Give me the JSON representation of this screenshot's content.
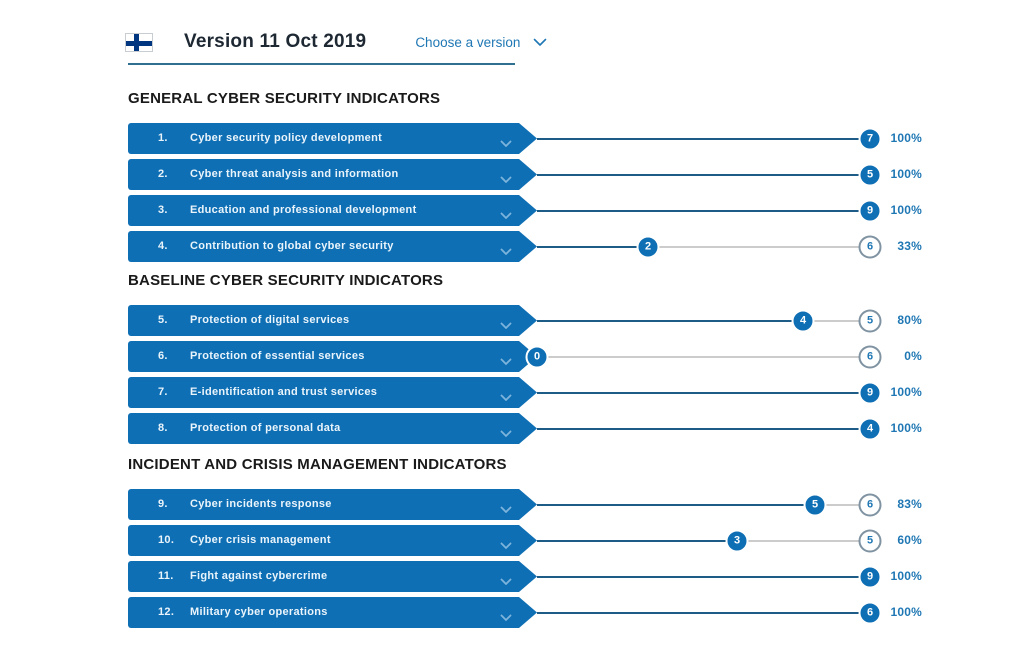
{
  "header": {
    "flag": "finland-flag",
    "title": "Version 11 Oct 2019",
    "version_selector": "Choose a version"
  },
  "sections": [
    {
      "title": "GENERAL CYBER SECURITY INDICATORS",
      "indicators": [
        {
          "num": "1.",
          "label": "Cyber security policy development",
          "score": 7,
          "max": 7,
          "percent": "100%"
        },
        {
          "num": "2.",
          "label": "Cyber threat analysis and information",
          "score": 5,
          "max": 5,
          "percent": "100%"
        },
        {
          "num": "3.",
          "label": "Education and professional development",
          "score": 9,
          "max": 9,
          "percent": "100%"
        },
        {
          "num": "4.",
          "label": "Contribution to global cyber security",
          "score": 2,
          "max": 6,
          "percent": "33%"
        }
      ]
    },
    {
      "title": "BASELINE CYBER SECURITY INDICATORS",
      "indicators": [
        {
          "num": "5.",
          "label": "Protection of digital services",
          "score": 4,
          "max": 5,
          "percent": "80%"
        },
        {
          "num": "6.",
          "label": "Protection of essential services",
          "score": 0,
          "max": 6,
          "percent": "0%"
        },
        {
          "num": "7.",
          "label": "E-identification and trust services",
          "score": 9,
          "max": 9,
          "percent": "100%"
        },
        {
          "num": "8.",
          "label": "Protection of personal data",
          "score": 4,
          "max": 4,
          "percent": "100%"
        }
      ]
    },
    {
      "title": "INCIDENT AND CRISIS MANAGEMENT INDICATORS",
      "indicators": [
        {
          "num": "9.",
          "label": "Cyber incidents response",
          "score": 5,
          "max": 6,
          "percent": "83%"
        },
        {
          "num": "10.",
          "label": "Cyber crisis management",
          "score": 3,
          "max": 5,
          "percent": "60%"
        },
        {
          "num": "11.",
          "label": "Fight against cybercrime",
          "score": 9,
          "max": 9,
          "percent": "100%"
        },
        {
          "num": "12.",
          "label": "Military cyber operations",
          "score": 6,
          "max": 6,
          "percent": "100%"
        }
      ]
    }
  ],
  "colors": {
    "bar_blue": "#0f6fb4",
    "accent_blue": "#1f77b4",
    "line_dark": "#1d5c87",
    "line_light": "#cccccc",
    "outline_ring": "#7f93a2",
    "flag_blue": "#003580",
    "header_rule": "#2f7090"
  }
}
